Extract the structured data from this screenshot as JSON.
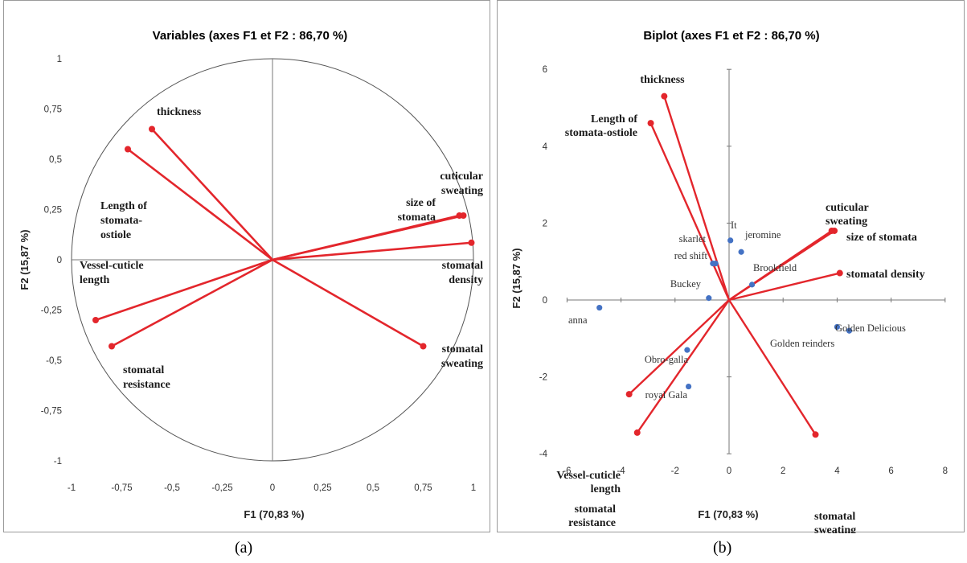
{
  "captions": {
    "a": "(a)",
    "b": "(b)"
  },
  "chart_data": [
    {
      "type": "scatter",
      "subtype": "correlation-circle",
      "title": "Variables (axes F1 et F2 : 86,70 %)",
      "xlabel": "F1 (70,83 %)",
      "ylabel": "F2 (15,87 %)",
      "xlim": [
        -1,
        1
      ],
      "ylim": [
        -1,
        1
      ],
      "xticks": [
        "-1",
        "-0,75",
        "-0,5",
        "-0,25",
        "0",
        "0,25",
        "0,5",
        "0,75",
        "1"
      ],
      "yticks": [
        "1",
        "0,75",
        "0,5",
        "0,25",
        "0",
        "-0,25",
        "-0,5",
        "-0,75",
        "-1"
      ],
      "grid": false,
      "vector_color": "#e3262c",
      "variables": [
        {
          "label": [
            "thickness"
          ],
          "x": -0.6,
          "y": 0.65
        },
        {
          "label": [
            "Length of",
            "stomata-",
            "ostiole"
          ],
          "x": -0.72,
          "y": 0.55
        },
        {
          "label": [
            "cuticular",
            "sweating"
          ],
          "x": 0.95,
          "y": 0.22
        },
        {
          "label": [
            "size of",
            "stomata"
          ],
          "x": 0.93,
          "y": 0.22
        },
        {
          "label": [
            "stomatal",
            "density"
          ],
          "x": 0.99,
          "y": 0.085
        },
        {
          "label": [
            "Vessel-cuticle",
            "length"
          ],
          "x": -0.88,
          "y": -0.3
        },
        {
          "label": [
            "stomatal",
            "resistance"
          ],
          "x": -0.8,
          "y": -0.43
        },
        {
          "label": [
            "stomatal",
            "sweating"
          ],
          "x": 0.75,
          "y": -0.43
        }
      ]
    },
    {
      "type": "scatter",
      "subtype": "biplot",
      "title": "Biplot (axes F1 et F2 : 86,70 %)",
      "xlabel": "F1 (70,83 %)",
      "ylabel": "F2 (15,87 %)",
      "xlim": [
        -6,
        8
      ],
      "ylim": [
        -4,
        6
      ],
      "xticks": [
        -6,
        -4,
        -2,
        0,
        2,
        4,
        6,
        8
      ],
      "yticks": [
        6,
        4,
        2,
        0,
        -2,
        -4
      ],
      "grid": false,
      "vector_color": "#e3262c",
      "point_color": "#4472c4",
      "variables": [
        {
          "label": [
            "thickness"
          ],
          "x": -2.4,
          "y": 5.3
        },
        {
          "label": [
            "Length of",
            "stomata-ostiole"
          ],
          "x": -2.9,
          "y": 4.6
        },
        {
          "label": [
            "cuticular",
            "sweating"
          ],
          "x": 3.9,
          "y": 1.8
        },
        {
          "label": [
            "size of stomata"
          ],
          "x": 3.8,
          "y": 1.8
        },
        {
          "label": [
            "stomatal density"
          ],
          "x": 4.1,
          "y": 0.7
        },
        {
          "label": [
            "Vessel-cuticle",
            "length"
          ],
          "x": -3.7,
          "y": -2.45
        },
        {
          "label": [
            "stomatal",
            "resistance"
          ],
          "x": -3.4,
          "y": -3.45
        },
        {
          "label": [
            "stomatal",
            "sweating"
          ],
          "x": 3.2,
          "y": -3.5
        }
      ],
      "observations": [
        {
          "label": "anna",
          "x": -4.8,
          "y": -0.2
        },
        {
          "label": "skarlet",
          "x": -0.6,
          "y": 0.95
        },
        {
          "label": "red shift",
          "x": -0.5,
          "y": 0.95
        },
        {
          "label": "It",
          "x": 0.05,
          "y": 1.55
        },
        {
          "label": "jeromine",
          "x": 0.45,
          "y": 1.25
        },
        {
          "label": "Brookfield",
          "x": 0.85,
          "y": 0.4
        },
        {
          "label": "Buckey",
          "x": -0.75,
          "y": 0.05
        },
        {
          "label": "Golden Delicious",
          "x": 4.45,
          "y": -0.8
        },
        {
          "label": "Golden reinders",
          "x": 4.0,
          "y": -0.7
        },
        {
          "label": "Obro-galla",
          "x": -1.55,
          "y": -1.3
        },
        {
          "label": "royal Gala",
          "x": -1.5,
          "y": -2.25
        }
      ]
    }
  ]
}
